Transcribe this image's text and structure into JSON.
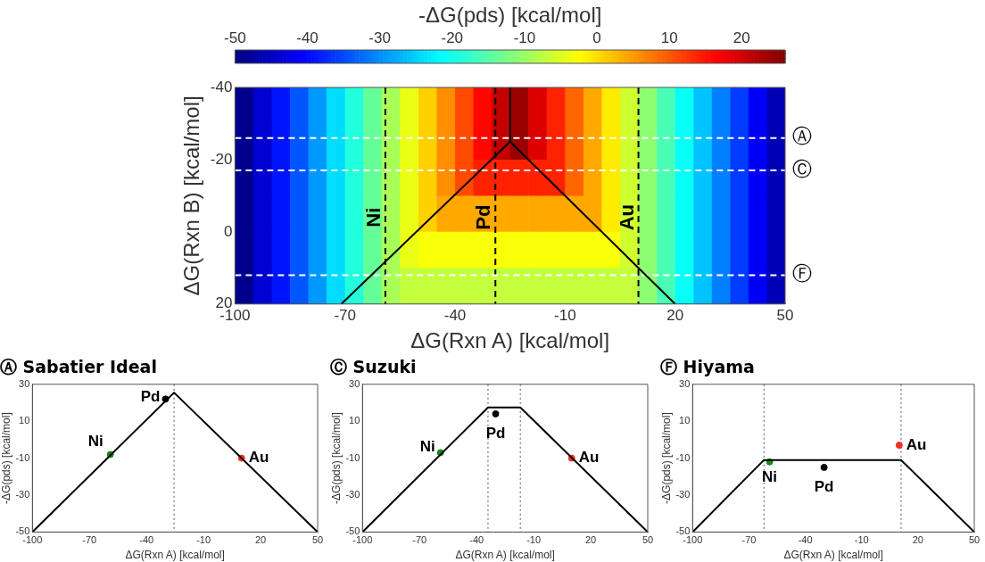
{
  "chart_data": [
    {
      "type": "heatmap",
      "clabel": "-ΔG(pds) [kcal/mol]",
      "xlabel": "ΔG(Rxn A) [kcal/mol]",
      "ylabel": "ΔG(Rxn B) [kcal/mol]",
      "x": [
        -97.5,
        -92.5,
        -87.5,
        -82.5,
        -77.5,
        -72.5,
        -67.5,
        -62.5,
        -57.5,
        -52.5,
        -47.5,
        -42.5,
        -37.5,
        -32.5,
        -27.5,
        -22.5,
        -17.5,
        -12.5,
        -7.5,
        -2.5,
        2.5,
        7.5,
        12.5,
        17.5,
        22.5,
        27.5,
        32.5,
        37.5,
        42.5,
        47.5
      ],
      "y": [
        -35,
        -25,
        -15,
        -5,
        5,
        15
      ],
      "cells": [
        [
          -49,
          -44,
          -39,
          -34,
          -29,
          -24,
          -19,
          -14,
          -9,
          -4,
          1,
          6,
          11,
          16,
          21,
          24,
          19,
          14,
          9,
          4,
          -1,
          -6,
          -11,
          -16,
          -21,
          -26,
          -31,
          -36,
          -41,
          -46
        ],
        [
          -49,
          -44,
          -39,
          -34,
          -29,
          -24,
          -19,
          -14,
          -9,
          -4,
          1,
          6,
          11,
          16,
          21,
          24,
          19,
          14,
          9,
          4,
          -1,
          -6,
          -11,
          -16,
          -21,
          -26,
          -31,
          -36,
          -41,
          -46
        ],
        [
          -49,
          -44,
          -39,
          -34,
          -29,
          -24,
          -19,
          -14,
          -9,
          -4,
          1,
          6,
          11,
          14,
          14,
          14,
          14,
          14,
          9,
          4,
          -1,
          -6,
          -11,
          -16,
          -21,
          -26,
          -31,
          -36,
          -41,
          -46
        ],
        [
          -49,
          -44,
          -39,
          -34,
          -29,
          -24,
          -19,
          -14,
          -9,
          -4,
          1,
          4,
          4,
          4,
          4,
          4,
          4,
          4,
          4,
          4,
          -1,
          -6,
          -11,
          -16,
          -21,
          -26,
          -31,
          -36,
          -41,
          -46
        ],
        [
          -49,
          -44,
          -39,
          -34,
          -29,
          -24,
          -19,
          -14,
          -9,
          -4,
          -3,
          -3,
          -3,
          -3,
          -3,
          -3,
          -3,
          -3,
          -3,
          -3,
          -3,
          -6,
          -11,
          -16,
          -21,
          -26,
          -31,
          -36,
          -41,
          -46
        ],
        [
          -49,
          -44,
          -39,
          -34,
          -29,
          -24,
          -19,
          -14,
          -9,
          -7,
          -7,
          -7,
          -7,
          -7,
          -7,
          -7,
          -7,
          -7,
          -7,
          -7,
          -7,
          -7,
          -11,
          -16,
          -21,
          -26,
          -31,
          -36,
          -41,
          -46
        ]
      ],
      "clim": [
        -50,
        26
      ],
      "cticks": [
        -50,
        -40,
        -30,
        -20,
        -10,
        0,
        10,
        20
      ],
      "xlim": [
        -100,
        50
      ],
      "xticks": [
        -100,
        -70,
        -40,
        -10,
        20,
        50
      ],
      "ylim": [
        20,
        -40
      ],
      "yticks": [
        -40,
        -20,
        0,
        20
      ],
      "series": [
        {
          "type": "line",
          "color": "#000000",
          "x": [
            -71,
            -25,
            20
          ],
          "values": [
            20,
            -25,
            20
          ]
        },
        {
          "type": "line",
          "color": "#000000",
          "x": [
            -25,
            -25
          ],
          "values": [
            -40,
            -25
          ]
        }
      ],
      "ref_lines": [
        {
          "axis": "x",
          "value": -59,
          "label": "Ni",
          "color": "#000000",
          "line_style": "dashed"
        },
        {
          "axis": "x",
          "value": -29,
          "label": "Pd",
          "color": "#000000",
          "line_style": "dashed"
        },
        {
          "axis": "x",
          "value": 10,
          "label": "Au",
          "color": "#000000",
          "line_style": "dashed"
        },
        {
          "axis": "y",
          "value": -26,
          "label": "Ⓐ",
          "color": "#ffffff",
          "line_style": "dashed"
        },
        {
          "axis": "y",
          "value": -17,
          "label": "Ⓒ",
          "color": "#ffffff",
          "line_style": "dashed"
        },
        {
          "axis": "y",
          "value": 12,
          "label": "Ⓕ",
          "color": "#ffffff",
          "line_style": "dashed"
        }
      ]
    },
    {
      "type": "line",
      "title": "Ⓐ Sabatier Ideal",
      "xlabel": "ΔG(Rxn A) [kcal/mol]",
      "ylabel": "-ΔG(pds) [kcal/mol]",
      "xlim": [
        -100,
        50
      ],
      "xticks": [
        -100,
        -70,
        -40,
        -10,
        20,
        50
      ],
      "ylim": [
        -50,
        30
      ],
      "yticks": [
        -50,
        -30,
        -10,
        10,
        30
      ],
      "series": [
        {
          "color": "#000000",
          "x": [
            -100,
            -25.5,
            50
          ],
          "values": [
            -50,
            25.5,
            -50
          ]
        },
        {
          "type": "scatter",
          "name": "Ni",
          "color": "#1a8a1a",
          "x": [
            -59
          ],
          "values": [
            -8
          ]
        },
        {
          "type": "scatter",
          "name": "Pd",
          "color": "#000000",
          "x": [
            -30
          ],
          "values": [
            22
          ]
        },
        {
          "type": "scatter",
          "name": "Au",
          "color": "#f03020",
          "x": [
            10
          ],
          "values": [
            -10
          ]
        }
      ],
      "ref_lines": [
        {
          "axis": "x",
          "value": -25.5,
          "color": "#555555",
          "line_style": "dotted"
        }
      ]
    },
    {
      "type": "line",
      "title": "Ⓒ Suzuki",
      "xlabel": "ΔG(Rxn A) [kcal/mol]",
      "ylabel": "-ΔG(pds) [kcal/mol]",
      "xlim": [
        -100,
        50
      ],
      "xticks": [
        -100,
        -70,
        -40,
        -10,
        20,
        50
      ],
      "ylim": [
        -50,
        30
      ],
      "yticks": [
        -50,
        -30,
        -10,
        10,
        30
      ],
      "series": [
        {
          "color": "#000000",
          "x": [
            -100,
            -34,
            -17,
            50
          ],
          "values": [
            -50,
            17.5,
            17.5,
            -50
          ]
        },
        {
          "type": "scatter",
          "name": "Ni",
          "color": "#1a8a1a",
          "x": [
            -59
          ],
          "values": [
            -7
          ]
        },
        {
          "type": "scatter",
          "name": "Pd",
          "color": "#000000",
          "x": [
            -30
          ],
          "values": [
            14
          ]
        },
        {
          "type": "scatter",
          "name": "Au",
          "color": "#f03020",
          "x": [
            10
          ],
          "values": [
            -10
          ]
        }
      ],
      "ref_lines": [
        {
          "axis": "x",
          "value": -34,
          "color": "#555555",
          "line_style": "dotted"
        },
        {
          "axis": "x",
          "value": -17,
          "color": "#555555",
          "line_style": "dotted"
        }
      ]
    },
    {
      "type": "line",
      "title": "Ⓕ Hiyama",
      "xlabel": "ΔG(Rxn A) [kcal/mol]",
      "ylabel": "-ΔG(pds) [kcal/mol]",
      "xlim": [
        -100,
        50
      ],
      "xticks": [
        -100,
        -70,
        -40,
        -10,
        20,
        50
      ],
      "ylim": [
        -50,
        30
      ],
      "yticks": [
        -50,
        -30,
        -10,
        10,
        30
      ],
      "series": [
        {
          "color": "#000000",
          "x": [
            -100,
            -62,
            11,
            50
          ],
          "values": [
            -50,
            -11,
            -11,
            -50
          ]
        },
        {
          "type": "scatter",
          "name": "Ni",
          "color": "#1a8a1a",
          "x": [
            -59
          ],
          "values": [
            -12
          ]
        },
        {
          "type": "scatter",
          "name": "Pd",
          "color": "#000000",
          "x": [
            -30
          ],
          "values": [
            -15
          ]
        },
        {
          "type": "scatter",
          "name": "Au",
          "color": "#f03020",
          "x": [
            10
          ],
          "values": [
            -3
          ]
        }
      ],
      "ref_lines": [
        {
          "axis": "x",
          "value": -62,
          "color": "#555555",
          "line_style": "dotted"
        },
        {
          "axis": "x",
          "value": 11,
          "color": "#555555",
          "line_style": "dotted"
        }
      ]
    }
  ]
}
